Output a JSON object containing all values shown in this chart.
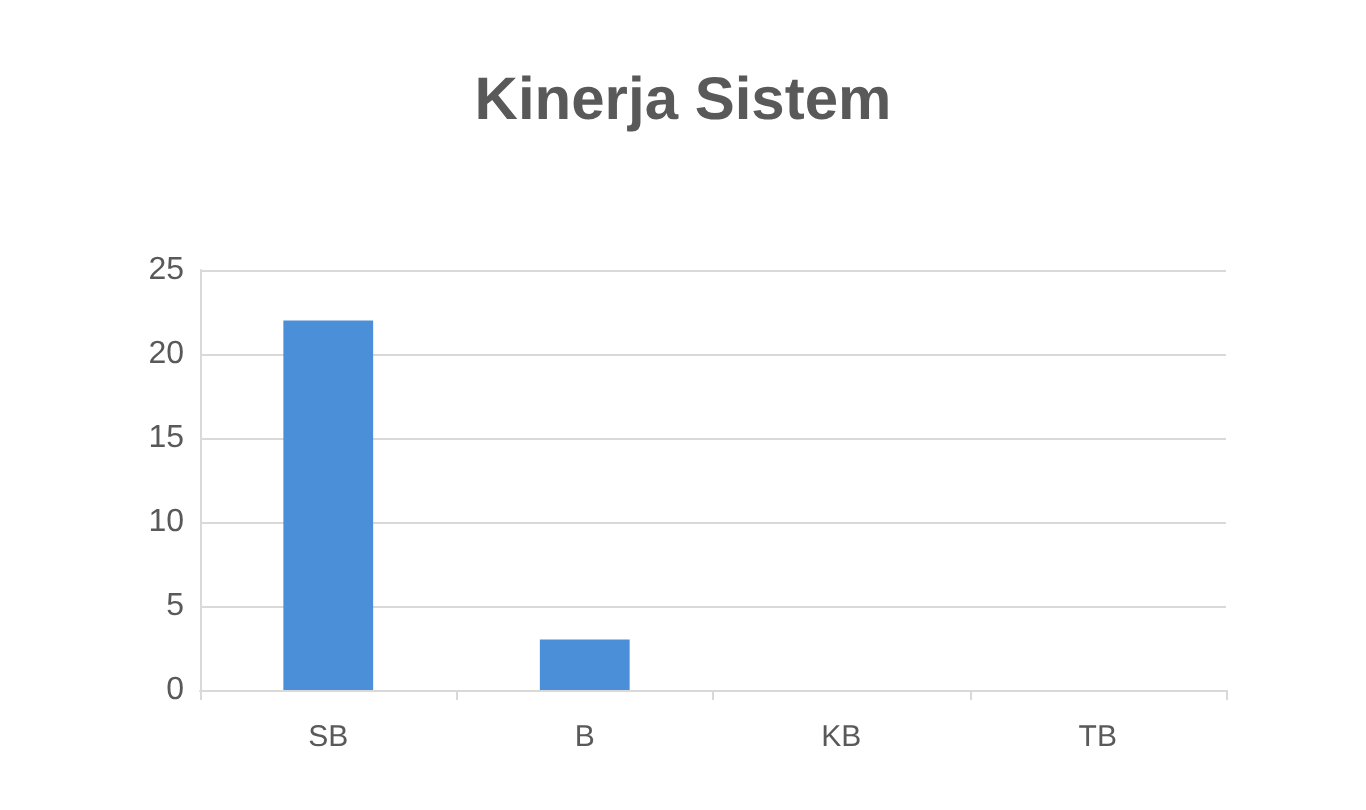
{
  "chart_data": {
    "type": "bar",
    "title": "Kinerja Sistem",
    "categories": [
      "SB",
      "B",
      "KB",
      "TB"
    ],
    "values": [
      22,
      3,
      0,
      0
    ],
    "color": "#4a8fd8",
    "ylim": [
      0,
      25
    ],
    "yticks": [
      0,
      5,
      10,
      15,
      20,
      25
    ],
    "grid": "y"
  }
}
